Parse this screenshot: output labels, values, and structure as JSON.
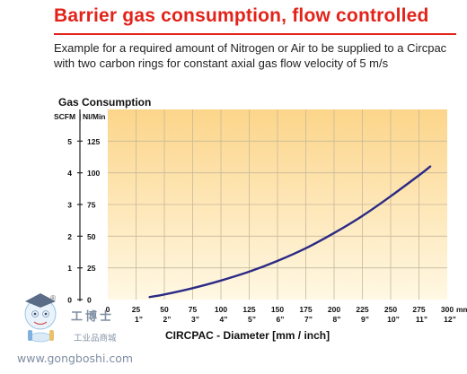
{
  "header": {
    "title": "Barrier gas consumption, flow controlled",
    "description": "Example for a required amount of Nitrogen or Air to be supplied to a Circpac with two carbon rings for constant axial gas flow velocity of 5 m/s"
  },
  "colors": {
    "title": "#e2231a",
    "curve": "#2b2a86",
    "gradient_top": "#fcd58a",
    "gradient_bottom": "#fff8e4",
    "grid": "#c7b89a"
  },
  "chart_data": {
    "type": "line",
    "title": "Gas Consumption",
    "y_unit_labels": [
      "SCFM",
      "Nl/Min"
    ],
    "y_outer_ticks": [
      "0",
      "1",
      "2",
      "3",
      "4",
      "5"
    ],
    "y_inner_ticks": [
      "0",
      "25",
      "50",
      "75",
      "100",
      "125"
    ],
    "ylim": [
      0,
      150
    ],
    "xlim": [
      0,
      300
    ],
    "x_ticks_mm": [
      "0",
      "25",
      "50",
      "75",
      "100",
      "125",
      "150",
      "175",
      "200",
      "225",
      "250",
      "275",
      "300"
    ],
    "x_unit_mm": "mm",
    "x_ticks_inch": [
      "1”",
      "2”",
      "3”",
      "4”",
      "5”",
      "6”",
      "7”",
      "8”",
      "9”",
      "10”",
      "11”",
      "12”"
    ],
    "x_unit_inch": "inch",
    "xlabel": "CIRCPAC - Diameter [mm / inch]",
    "grid": true,
    "series": [
      {
        "x": [
          37,
          50,
          75,
          100,
          125,
          150,
          175,
          200,
          225,
          250,
          275,
          285
        ],
        "y": [
          2,
          4,
          9,
          15,
          22,
          30.5,
          40.5,
          52.5,
          66,
          81.5,
          98,
          105
        ]
      }
    ]
  },
  "watermark": {
    "brand_cn": "工博士",
    "sub_cn": "工业品商城",
    "url": "www.gongboshi.com",
    "mark": "®"
  }
}
